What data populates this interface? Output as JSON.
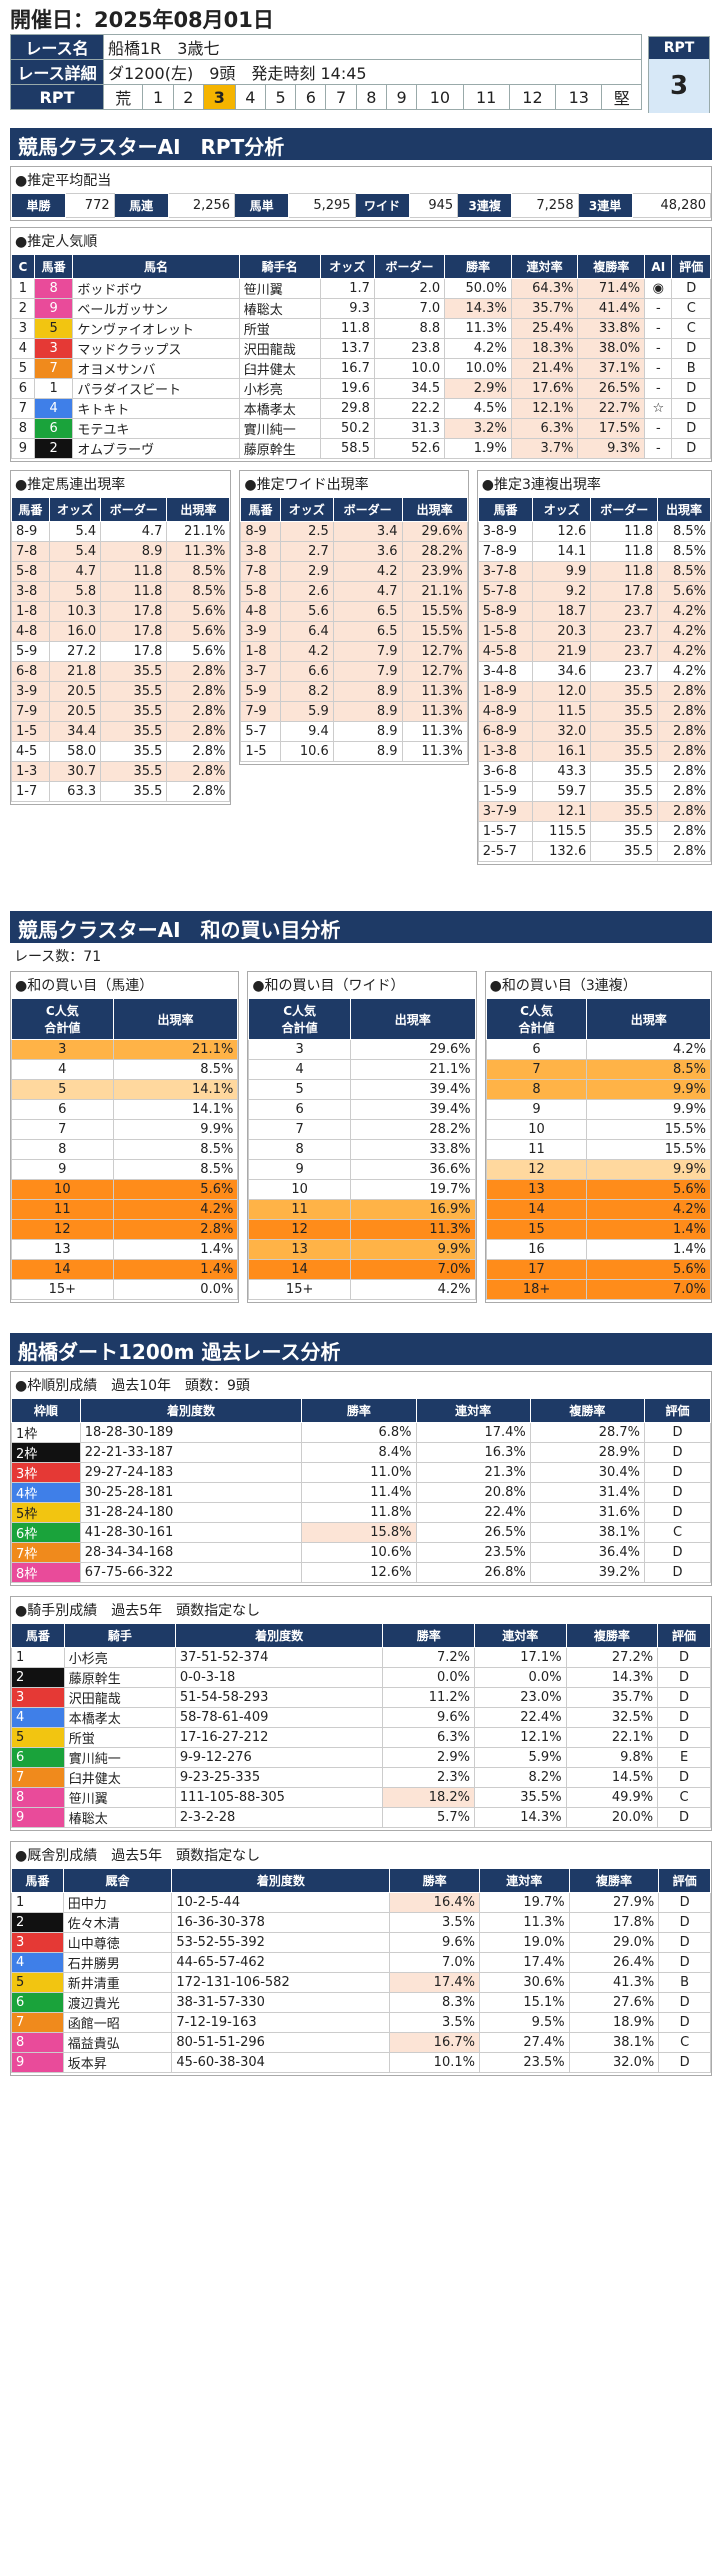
{
  "header": {
    "date": "開催日：2025年08月01日",
    "race_label": "レース名",
    "race_name": "船橋1R　3歳七",
    "detail_label": "レース詳細",
    "detail": "ダ1200(左)　9頭　発走時刻 14:45",
    "rpt_label": "RPT",
    "rpt_scale": [
      "荒",
      "1",
      "2",
      "3",
      "4",
      "5",
      "6",
      "7",
      "8",
      "9",
      "10",
      "11",
      "12",
      "13",
      "堅"
    ],
    "rpt_selected": "3",
    "rpt_box_label": "RPT",
    "rpt_value": "3"
  },
  "sec1": {
    "title": "競馬クラスターAI　RPT分析"
  },
  "payout": {
    "title": "●推定平均配当",
    "items": [
      {
        "k": "単勝",
        "v": "772"
      },
      {
        "k": "馬連",
        "v": "2,256"
      },
      {
        "k": "馬単",
        "v": "5,295"
      },
      {
        "k": "ワイド",
        "v": "945"
      },
      {
        "k": "3連複",
        "v": "7,258"
      },
      {
        "k": "3連単",
        "v": "48,280"
      }
    ]
  },
  "popular": {
    "title": "●推定人気順",
    "headers": [
      "C",
      "馬番",
      "馬名",
      "騎手名",
      "オッズ",
      "ボーダー",
      "勝率",
      "連対率",
      "複勝率",
      "AI",
      "評価"
    ],
    "rows": [
      [
        "1",
        "8",
        "ボッドボウ",
        "笹川翼",
        "1.7",
        "2.0",
        "50.0%",
        "64.3%",
        "71.4%",
        "◉",
        "D"
      ],
      [
        "2",
        "9",
        "ベールガッサン",
        "椿聡太",
        "9.3",
        "7.0",
        "14.3%",
        "35.7%",
        "41.4%",
        "-",
        "C"
      ],
      [
        "3",
        "5",
        "ケンヴァイオレット",
        "所蛍",
        "11.8",
        "8.8",
        "11.3%",
        "25.4%",
        "33.8%",
        "-",
        "C"
      ],
      [
        "4",
        "3",
        "マッドクラップス",
        "沢田龍哉",
        "13.7",
        "23.8",
        "4.2%",
        "18.3%",
        "38.0%",
        "-",
        "D"
      ],
      [
        "5",
        "7",
        "オヨメサンバ",
        "臼井健太",
        "16.7",
        "10.0",
        "10.0%",
        "21.4%",
        "37.1%",
        "-",
        "B"
      ],
      [
        "6",
        "1",
        "パラダイスビート",
        "小杉亮",
        "19.6",
        "34.5",
        "2.9%",
        "17.6%",
        "26.5%",
        "-",
        "D"
      ],
      [
        "7",
        "4",
        "キトキト",
        "本橋孝太",
        "29.8",
        "22.2",
        "4.5%",
        "12.1%",
        "22.7%",
        "☆",
        "D"
      ],
      [
        "8",
        "6",
        "モテユキ",
        "實川純一",
        "50.2",
        "31.3",
        "3.2%",
        "6.3%",
        "17.5%",
        "-",
        "D"
      ],
      [
        "9",
        "2",
        "オムブラーヴ",
        "藤原幹生",
        "58.5",
        "52.6",
        "1.9%",
        "3.7%",
        "9.3%",
        "-",
        "D"
      ]
    ]
  },
  "umaren": {
    "title": "●推定馬連出現率",
    "headers": [
      "馬番",
      "オッズ",
      "ボーダー",
      "出現率"
    ],
    "rows": [
      [
        "8-9",
        "5.4",
        "4.7",
        "21.1%"
      ],
      [
        "7-8",
        "5.4",
        "8.9",
        "11.3%"
      ],
      [
        "5-8",
        "4.7",
        "11.8",
        "8.5%"
      ],
      [
        "3-8",
        "5.8",
        "11.8",
        "8.5%"
      ],
      [
        "1-8",
        "10.3",
        "17.8",
        "5.6%"
      ],
      [
        "4-8",
        "16.0",
        "17.8",
        "5.6%"
      ],
      [
        "5-9",
        "27.2",
        "17.8",
        "5.6%"
      ],
      [
        "6-8",
        "21.8",
        "35.5",
        "2.8%"
      ],
      [
        "3-9",
        "20.5",
        "35.5",
        "2.8%"
      ],
      [
        "7-9",
        "20.5",
        "35.5",
        "2.8%"
      ],
      [
        "1-5",
        "34.4",
        "35.5",
        "2.8%"
      ],
      [
        "4-5",
        "58.0",
        "35.5",
        "2.8%"
      ],
      [
        "1-3",
        "30.7",
        "35.5",
        "2.8%"
      ],
      [
        "1-7",
        "63.3",
        "35.5",
        "2.8%"
      ]
    ]
  },
  "wide": {
    "title": "●推定ワイド出現率",
    "headers": [
      "馬番",
      "オッズ",
      "ボーダー",
      "出現率"
    ],
    "rows": [
      [
        "8-9",
        "2.5",
        "3.4",
        "29.6%"
      ],
      [
        "3-8",
        "2.7",
        "3.6",
        "28.2%"
      ],
      [
        "7-8",
        "2.9",
        "4.2",
        "23.9%"
      ],
      [
        "5-8",
        "2.6",
        "4.7",
        "21.1%"
      ],
      [
        "4-8",
        "5.6",
        "6.5",
        "15.5%"
      ],
      [
        "3-9",
        "6.4",
        "6.5",
        "15.5%"
      ],
      [
        "1-8",
        "4.2",
        "7.9",
        "12.7%"
      ],
      [
        "3-7",
        "6.6",
        "7.9",
        "12.7%"
      ],
      [
        "5-9",
        "8.2",
        "8.9",
        "11.3%"
      ],
      [
        "7-9",
        "5.9",
        "8.9",
        "11.3%"
      ],
      [
        "5-7",
        "9.4",
        "8.9",
        "11.3%"
      ],
      [
        "1-5",
        "10.6",
        "8.9",
        "11.3%"
      ]
    ]
  },
  "trio": {
    "title": "●推定3連複出現率",
    "headers": [
      "馬番",
      "オッズ",
      "ボーダー",
      "出現率"
    ],
    "rows": [
      [
        "3-8-9",
        "12.6",
        "11.8",
        "8.5%"
      ],
      [
        "7-8-9",
        "14.1",
        "11.8",
        "8.5%"
      ],
      [
        "3-7-8",
        "9.9",
        "11.8",
        "8.5%"
      ],
      [
        "5-7-8",
        "9.2",
        "17.8",
        "5.6%"
      ],
      [
        "5-8-9",
        "18.7",
        "23.7",
        "4.2%"
      ],
      [
        "1-5-8",
        "20.3",
        "23.7",
        "4.2%"
      ],
      [
        "4-5-8",
        "21.9",
        "23.7",
        "4.2%"
      ],
      [
        "3-4-8",
        "34.6",
        "23.7",
        "4.2%"
      ],
      [
        "1-8-9",
        "12.0",
        "35.5",
        "2.8%"
      ],
      [
        "4-8-9",
        "11.5",
        "35.5",
        "2.8%"
      ],
      [
        "6-8-9",
        "32.0",
        "35.5",
        "2.8%"
      ],
      [
        "1-3-8",
        "16.1",
        "35.5",
        "2.8%"
      ],
      [
        "3-6-8",
        "43.3",
        "35.5",
        "2.8%"
      ],
      [
        "1-5-9",
        "59.7",
        "35.5",
        "2.8%"
      ],
      [
        "3-7-9",
        "12.1",
        "35.5",
        "2.8%"
      ],
      [
        "1-5-7",
        "115.5",
        "35.5",
        "2.8%"
      ],
      [
        "2-5-7",
        "132.6",
        "35.5",
        "2.8%"
      ]
    ]
  },
  "sec2": {
    "title": "競馬クラスターAI　和の買い目分析",
    "count": "レース数：71"
  },
  "wa_umaren": {
    "title": "●和の買い目（馬連）",
    "headers": [
      "C人気\n合計値",
      "出現率"
    ],
    "rows": [
      [
        "3",
        "21.1%"
      ],
      [
        "4",
        "8.5%"
      ],
      [
        "5",
        "14.1%"
      ],
      [
        "6",
        "14.1%"
      ],
      [
        "7",
        "9.9%"
      ],
      [
        "8",
        "8.5%"
      ],
      [
        "9",
        "8.5%"
      ],
      [
        "10",
        "5.6%"
      ],
      [
        "11",
        "4.2%"
      ],
      [
        "12",
        "2.8%"
      ],
      [
        "13",
        "1.4%"
      ],
      [
        "14",
        "1.4%"
      ],
      [
        "15+",
        "0.0%"
      ]
    ]
  },
  "wa_wide": {
    "title": "●和の買い目（ワイド）",
    "headers": [
      "C人気\n合計値",
      "出現率"
    ],
    "rows": [
      [
        "3",
        "29.6%"
      ],
      [
        "4",
        "21.1%"
      ],
      [
        "5",
        "39.4%"
      ],
      [
        "6",
        "39.4%"
      ],
      [
        "7",
        "28.2%"
      ],
      [
        "8",
        "33.8%"
      ],
      [
        "9",
        "36.6%"
      ],
      [
        "10",
        "19.7%"
      ],
      [
        "11",
        "16.9%"
      ],
      [
        "12",
        "11.3%"
      ],
      [
        "13",
        "9.9%"
      ],
      [
        "14",
        "7.0%"
      ],
      [
        "15+",
        "4.2%"
      ]
    ]
  },
  "wa_trio": {
    "title": "●和の買い目（3連複）",
    "headers": [
      "C人気\n合計値",
      "出現率"
    ],
    "rows": [
      [
        "6",
        "4.2%"
      ],
      [
        "7",
        "8.5%"
      ],
      [
        "8",
        "9.9%"
      ],
      [
        "9",
        "9.9%"
      ],
      [
        "10",
        "15.5%"
      ],
      [
        "11",
        "15.5%"
      ],
      [
        "12",
        "9.9%"
      ],
      [
        "13",
        "5.6%"
      ],
      [
        "14",
        "4.2%"
      ],
      [
        "15",
        "1.4%"
      ],
      [
        "16",
        "1.4%"
      ],
      [
        "17",
        "5.6%"
      ],
      [
        "18+",
        "7.0%"
      ]
    ]
  },
  "sec3": {
    "title": "船橋ダート1200m 過去レース分析"
  },
  "waku": {
    "title": "●枠順別成績　過去10年　頭数：9頭",
    "headers": [
      "枠順",
      "着別度数",
      "勝率",
      "連対率",
      "複勝率",
      "評価"
    ],
    "rows": [
      [
        "1枠",
        "18-28-30-189",
        "6.8%",
        "17.4%",
        "28.7%",
        "D"
      ],
      [
        "2枠",
        "22-21-33-187",
        "8.4%",
        "16.3%",
        "28.9%",
        "D"
      ],
      [
        "3枠",
        "29-27-24-183",
        "11.0%",
        "21.3%",
        "30.4%",
        "D"
      ],
      [
        "4枠",
        "30-25-28-181",
        "11.4%",
        "20.8%",
        "31.4%",
        "D"
      ],
      [
        "5枠",
        "31-28-24-180",
        "11.8%",
        "22.4%",
        "31.6%",
        "D"
      ],
      [
        "6枠",
        "41-28-30-161",
        "15.8%",
        "26.5%",
        "38.1%",
        "C"
      ],
      [
        "7枠",
        "28-34-34-168",
        "10.6%",
        "23.5%",
        "36.4%",
        "D"
      ],
      [
        "8枠",
        "67-75-66-322",
        "12.6%",
        "26.8%",
        "39.2%",
        "D"
      ]
    ]
  },
  "jockey": {
    "title": "●騎手別成績　過去5年　頭数指定なし",
    "headers": [
      "馬番",
      "騎手",
      "着別度数",
      "勝率",
      "連対率",
      "複勝率",
      "評価"
    ],
    "rows": [
      [
        "1",
        "小杉亮",
        "37-51-52-374",
        "7.2%",
        "17.1%",
        "27.2%",
        "D"
      ],
      [
        "2",
        "藤原幹生",
        "0-0-3-18",
        "0.0%",
        "0.0%",
        "14.3%",
        "D"
      ],
      [
        "3",
        "沢田龍哉",
        "51-54-58-293",
        "11.2%",
        "23.0%",
        "35.7%",
        "D"
      ],
      [
        "4",
        "本橋孝太",
        "58-78-61-409",
        "9.6%",
        "22.4%",
        "32.5%",
        "D"
      ],
      [
        "5",
        "所蛍",
        "17-16-27-212",
        "6.3%",
        "12.1%",
        "22.1%",
        "D"
      ],
      [
        "6",
        "實川純一",
        "9-9-12-276",
        "2.9%",
        "5.9%",
        "9.8%",
        "E"
      ],
      [
        "7",
        "臼井健太",
        "9-23-25-335",
        "2.3%",
        "8.2%",
        "14.5%",
        "D"
      ],
      [
        "8",
        "笹川翼",
        "111-105-88-305",
        "18.2%",
        "35.5%",
        "49.9%",
        "C"
      ],
      [
        "9",
        "椿聡太",
        "2-3-2-28",
        "5.7%",
        "14.3%",
        "20.0%",
        "D"
      ]
    ]
  },
  "trainer": {
    "title": "●厩舎別成績　過去5年　頭数指定なし",
    "headers": [
      "馬番",
      "厩舎",
      "着別度数",
      "勝率",
      "連対率",
      "複勝率",
      "評価"
    ],
    "rows": [
      [
        "1",
        "田中力",
        "10-2-5-44",
        "16.4%",
        "19.7%",
        "27.9%",
        "D"
      ],
      [
        "2",
        "佐々木清",
        "16-36-30-378",
        "3.5%",
        "11.3%",
        "17.8%",
        "D"
      ],
      [
        "3",
        "山中尊徳",
        "53-52-55-392",
        "9.6%",
        "19.0%",
        "29.0%",
        "D"
      ],
      [
        "4",
        "石井勝男",
        "44-65-57-462",
        "7.0%",
        "17.4%",
        "26.4%",
        "D"
      ],
      [
        "5",
        "新井清重",
        "172-131-106-582",
        "17.4%",
        "30.6%",
        "41.3%",
        "B"
      ],
      [
        "6",
        "渡辺貴光",
        "38-31-57-330",
        "8.3%",
        "15.1%",
        "27.6%",
        "D"
      ],
      [
        "7",
        "函館一昭",
        "7-12-19-163",
        "3.5%",
        "9.5%",
        "18.9%",
        "D"
      ],
      [
        "8",
        "福益貴弘",
        "80-51-51-296",
        "16.7%",
        "27.4%",
        "38.1%",
        "C"
      ],
      [
        "9",
        "坂本昇",
        "45-60-38-304",
        "10.1%",
        "23.5%",
        "32.0%",
        "D"
      ]
    ]
  },
  "colors": {
    "navy": "#1e3a66",
    "waku": [
      "#ffffff",
      "#111111",
      "#e53935",
      "#3f7fe8",
      "#f2c511",
      "#1aa33b",
      "#f08a1c",
      "#e94b9a"
    ]
  }
}
